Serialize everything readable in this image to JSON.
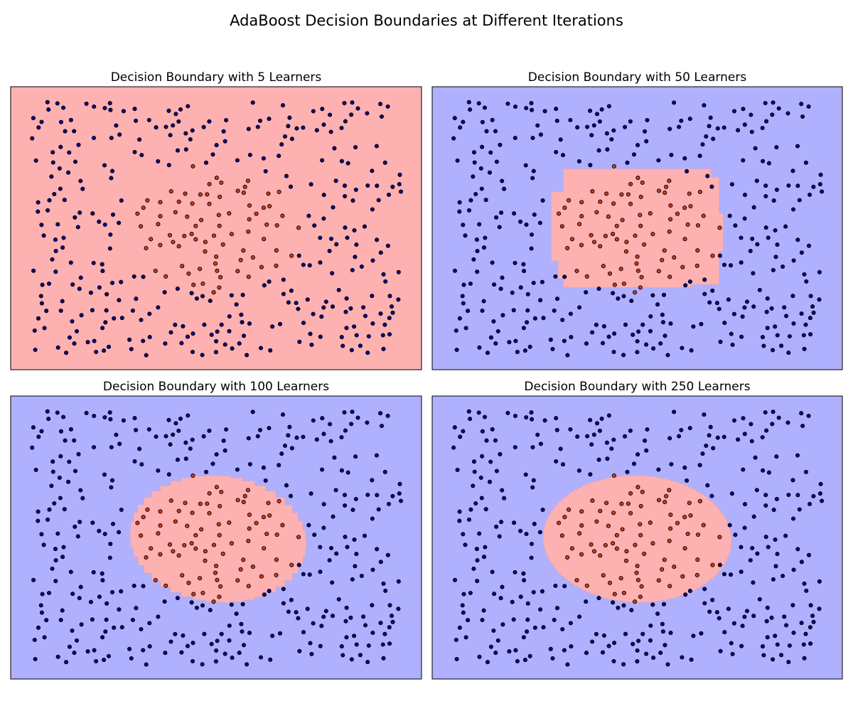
{
  "suptitle": "AdaBoost Decision Boundaries at Different Iterations",
  "colors": {
    "region_outer": "#afb1fe",
    "region_inner": "#fdb1b1",
    "point_outer": "#0a0a82",
    "point_inner": "#d23a1e",
    "edge": "#000000"
  },
  "chart_data": [
    {
      "type": "scatter",
      "title": "Decision Boundary with 5 Learners",
      "n_estimators": 5,
      "xlim": [
        0,
        1
      ],
      "ylim": [
        0,
        1
      ],
      "boundary": "none",
      "ticks": "hidden"
    },
    {
      "type": "scatter",
      "title": "Decision Boundary with 50 Learners",
      "n_estimators": 50,
      "xlim": [
        0,
        1
      ],
      "ylim": [
        0,
        1
      ],
      "boundary": "rectangular",
      "boundary_extent": {
        "x": [
          0.29,
          0.71
        ],
        "y": [
          0.29,
          0.71
        ]
      },
      "ticks": "hidden"
    },
    {
      "type": "scatter",
      "title": "Decision Boundary with 100 Learners",
      "n_estimators": 100,
      "xlim": [
        0,
        1
      ],
      "ylim": [
        0,
        1
      ],
      "boundary": "stepped-ellipse",
      "boundary_extent": {
        "x": [
          0.29,
          0.72
        ],
        "y": [
          0.27,
          0.72
        ]
      },
      "ticks": "hidden"
    },
    {
      "type": "scatter",
      "title": "Decision Boundary with 250 Learners",
      "n_estimators": 250,
      "xlim": [
        0,
        1
      ],
      "ylim": [
        0,
        1
      ],
      "boundary": "smooth-ellipse",
      "boundary_extent": {
        "x": [
          0.27,
          0.73
        ],
        "y": [
          0.27,
          0.72
        ]
      },
      "ticks": "hidden"
    }
  ]
}
